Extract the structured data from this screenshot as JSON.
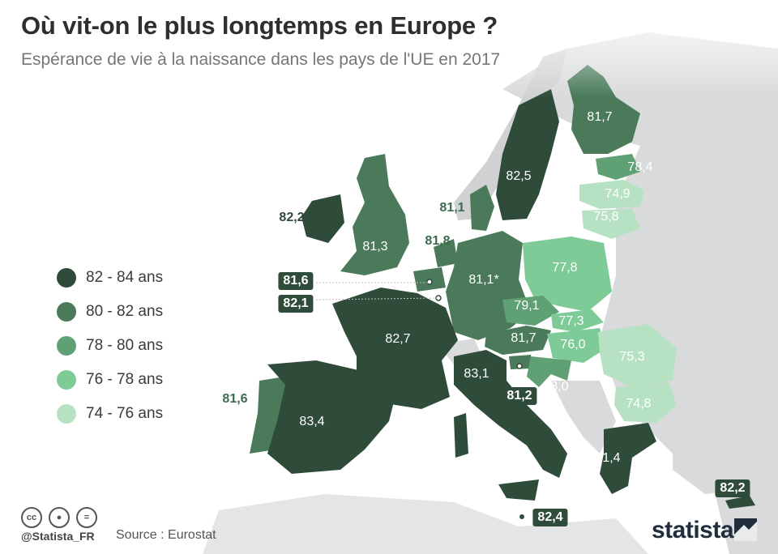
{
  "title": "Où vit-on le plus longtemps en Europe ?",
  "subtitle": "Espérance de vie à la naissance dans les pays de l'UE en 2017",
  "legend": [
    {
      "label": "82 - 84 ans",
      "color": "#2f4b3a"
    },
    {
      "label": "80 - 82 ans",
      "color": "#4a7a5a"
    },
    {
      "label": "78 - 80 ans",
      "color": "#5fa074"
    },
    {
      "label": "76 - 78 ans",
      "color": "#7fcb98"
    },
    {
      "label": "74 - 76 ans",
      "color": "#b6e2c3"
    }
  ],
  "countries": [
    {
      "name": "Finlande",
      "value": "81,7",
      "style": "light"
    },
    {
      "name": "Suède",
      "value": "82,5",
      "style": "light"
    },
    {
      "name": "Estonie",
      "value": "78,4",
      "style": "light"
    },
    {
      "name": "Lettonie",
      "value": "74,9",
      "style": "light"
    },
    {
      "name": "Lituanie",
      "value": "75,8",
      "style": "light"
    },
    {
      "name": "Danemark",
      "value": "81,1",
      "style": "darkgreen"
    },
    {
      "name": "Irlande",
      "value": "82,2",
      "style": "dark"
    },
    {
      "name": "Royaume-Uni",
      "value": "81,3",
      "style": "light"
    },
    {
      "name": "Pays-Bas",
      "value": "81,8",
      "style": "darkgreen"
    },
    {
      "name": "Belgique",
      "value": "81,6",
      "style": "boxed"
    },
    {
      "name": "Luxembourg",
      "value": "82,1",
      "style": "boxed"
    },
    {
      "name": "Allemagne",
      "value": "81,1*",
      "style": "light"
    },
    {
      "name": "Pologne",
      "value": "77,8",
      "style": "light"
    },
    {
      "name": "Tchéquie",
      "value": "79,1",
      "style": "light"
    },
    {
      "name": "Slovaquie",
      "value": "77,3",
      "style": "light"
    },
    {
      "name": "Autriche",
      "value": "81,7",
      "style": "light"
    },
    {
      "name": "Hongrie",
      "value": "76,0",
      "style": "light"
    },
    {
      "name": "Roumanie",
      "value": "75,3",
      "style": "light"
    },
    {
      "name": "France",
      "value": "82,7",
      "style": "light"
    },
    {
      "name": "Italie",
      "value": "83,1",
      "style": "light"
    },
    {
      "name": "Croatie",
      "value": "78,0",
      "style": "light"
    },
    {
      "name": "Slovénie",
      "value": "81,2",
      "style": "boxed"
    },
    {
      "name": "Bulgarie",
      "value": "74,8",
      "style": "light"
    },
    {
      "name": "Portugal",
      "value": "81,6",
      "style": "darkgreen"
    },
    {
      "name": "Espagne",
      "value": "83,4",
      "style": "light"
    },
    {
      "name": "Grèce",
      "value": "81,4",
      "style": "light"
    },
    {
      "name": "Chypre",
      "value": "82,2",
      "style": "boxed"
    },
    {
      "name": "Malte",
      "value": "82,4",
      "style": "boxed"
    }
  ],
  "footer": {
    "handle": "@Statista_FR",
    "source": "Source : Eurostat",
    "brand": "statista"
  }
}
